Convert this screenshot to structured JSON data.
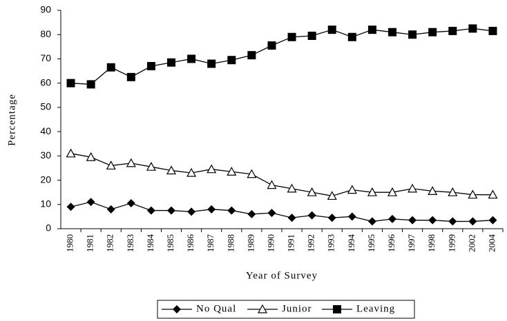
{
  "chart_data": {
    "type": "line",
    "xlabel": "Year of Survey",
    "ylabel": "Percentage",
    "categories": [
      "1980",
      "1981",
      "1982",
      "1983",
      "1984",
      "1985",
      "1986",
      "1987",
      "1988",
      "1989",
      "1990",
      "1991",
      "1992",
      "1993",
      "1994",
      "1995",
      "1996",
      "1997",
      "1998",
      "1999",
      "2002",
      "2004"
    ],
    "series": [
      {
        "name": "No Qual",
        "color": "#000000",
        "marker": "diamond",
        "values": [
          9,
          11,
          8,
          10.5,
          7.5,
          7.5,
          7,
          8,
          7.5,
          6,
          6.5,
          4.5,
          5.5,
          4.5,
          5,
          3,
          4,
          3.5,
          3.5,
          3,
          3,
          3.5
        ]
      },
      {
        "name": "Junior",
        "color": "#000000",
        "marker": "triangle-open",
        "values": [
          31,
          29.5,
          26,
          27,
          25.5,
          24,
          23,
          24.5,
          23.5,
          22.5,
          18,
          16.5,
          15,
          13.5,
          16,
          15,
          15,
          16.5,
          15.5,
          15,
          14,
          14
        ]
      },
      {
        "name": "Leaving",
        "color": "#000000",
        "marker": "square",
        "values": [
          60,
          59.5,
          66.5,
          62.5,
          67,
          68.5,
          70,
          68,
          69.5,
          71.5,
          75.5,
          79,
          79.5,
          82,
          79,
          82,
          81,
          80,
          81,
          81.5,
          82.5,
          81.5
        ]
      }
    ],
    "ylim": [
      0,
      90
    ],
    "yticks": [
      0,
      10,
      20,
      30,
      40,
      50,
      60,
      70,
      80,
      90
    ],
    "grid": false,
    "legend": "bottom"
  }
}
